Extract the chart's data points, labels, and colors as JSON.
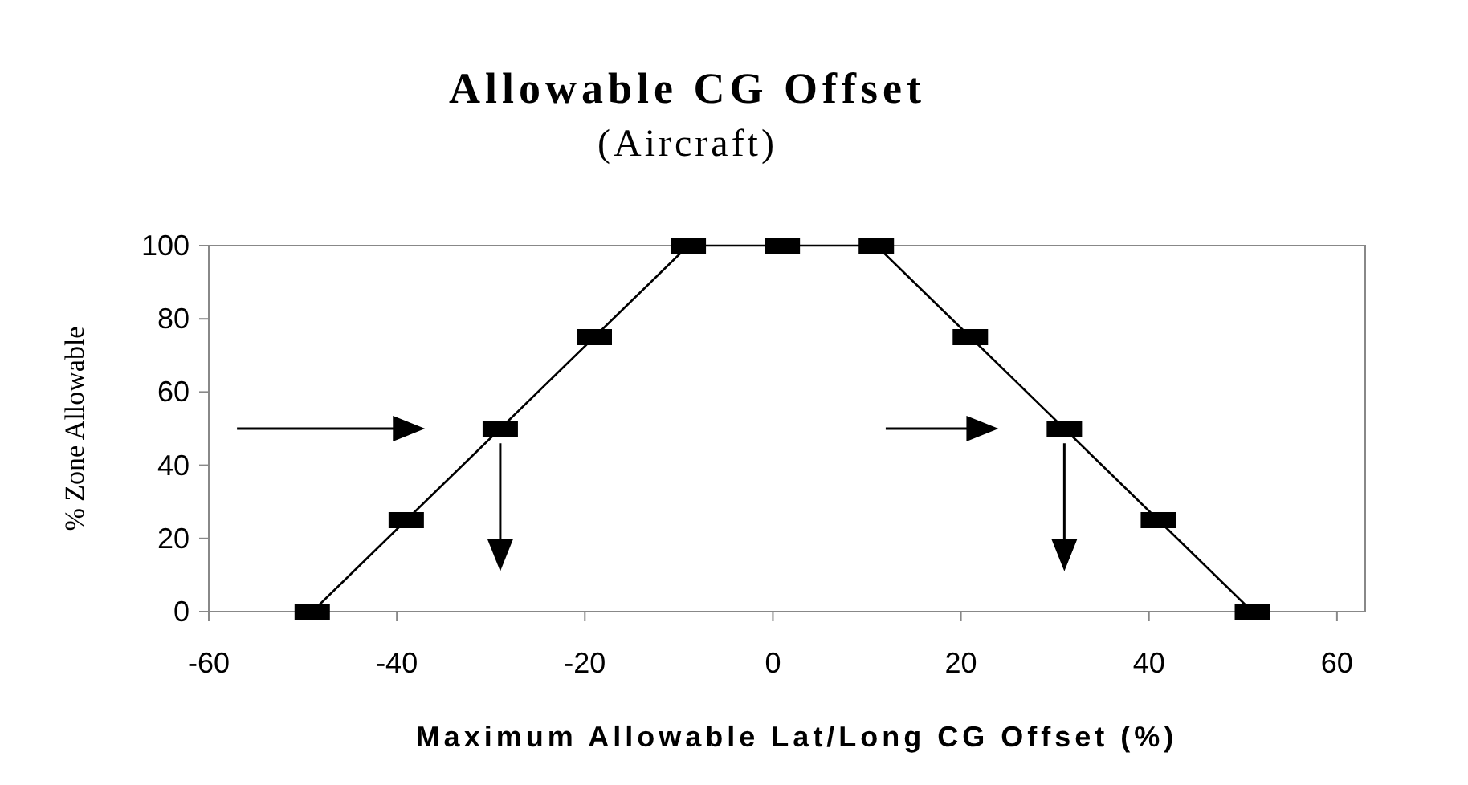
{
  "chart_data": {
    "type": "line",
    "title": "Allowable CG Offset",
    "subtitle": "(Aircraft)",
    "xlabel": "Maximum Allowable Lat/Long CG Offset (%)",
    "ylabel": "% Zone Allowable",
    "x": [
      -49,
      -39,
      -29,
      -19,
      -9,
      1,
      11,
      21,
      31,
      41,
      51
    ],
    "series": [
      {
        "color": "#000000",
        "values": [
          0,
          25,
          50,
          75,
          100,
          100,
          100,
          75,
          50,
          25,
          0
        ]
      }
    ],
    "xlim": [
      -60,
      63
    ],
    "xticks": [
      -60,
      -40,
      -20,
      0,
      20,
      40,
      60
    ],
    "ylim": [
      0,
      100
    ],
    "yticks": [
      0,
      20,
      40,
      60,
      80,
      100
    ],
    "grid": false,
    "marker": "square",
    "line_style": "solid"
  }
}
